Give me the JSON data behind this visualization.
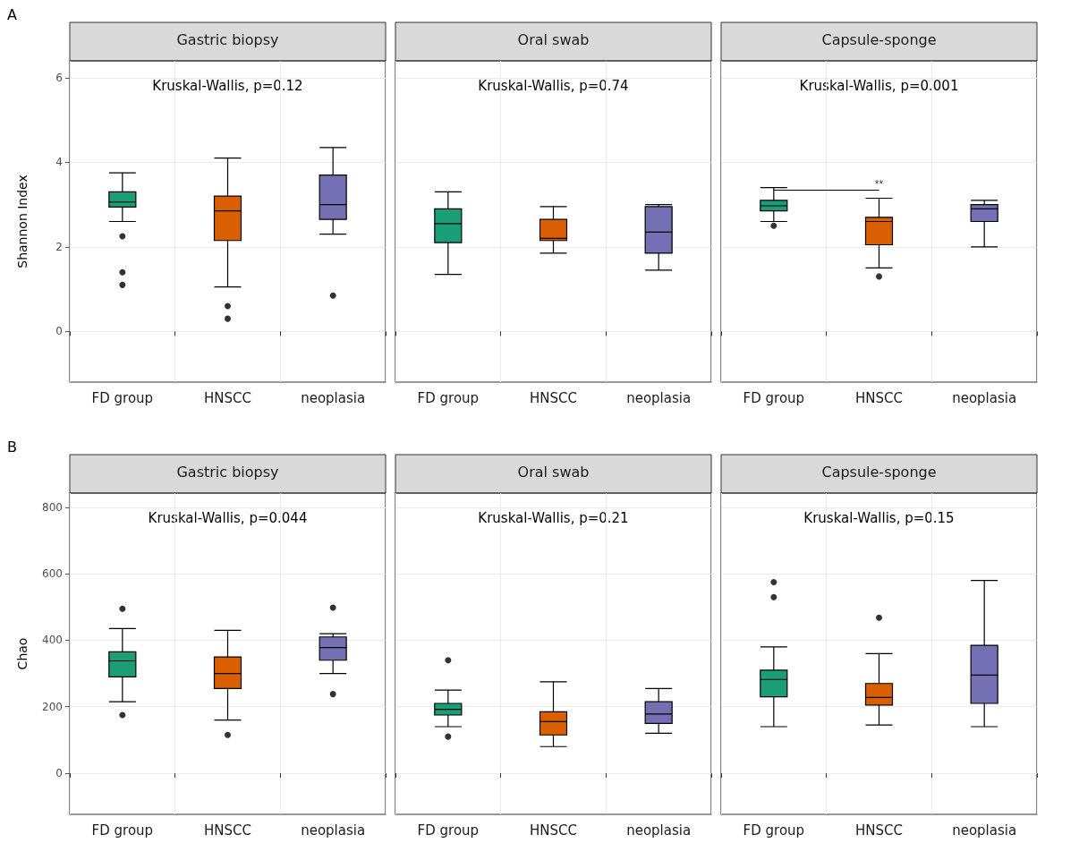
{
  "chart_data": [
    {
      "type": "box",
      "title": "Gastric biopsy",
      "ylabel": "Shannon Index",
      "annotations": [
        "Kruskal-Wallis, p=0.12",
        "A"
      ],
      "categories": [
        "FD group",
        "HNSCC",
        "neoplasia"
      ],
      "colors": [
        "#1b9e77",
        "#d95f02",
        "#7570b3"
      ],
      "ylim": [
        -1.2,
        6.4
      ],
      "yticks": [
        0,
        2,
        4,
        6
      ],
      "grid": true,
      "boxes": [
        {
          "low": 2.6,
          "q1": 2.94,
          "median": 3.06,
          "q3": 3.3,
          "high": 3.75,
          "outliers": [
            2.25,
            1.4,
            1.1
          ]
        },
        {
          "low": 1.05,
          "q1": 2.15,
          "median": 2.85,
          "q3": 3.2,
          "high": 4.1,
          "outliers": [
            0.6,
            0.3
          ]
        },
        {
          "low": 2.3,
          "q1": 2.65,
          "median": 3.0,
          "q3": 3.7,
          "high": 4.35,
          "outliers": [
            0.85
          ]
        }
      ]
    },
    {
      "type": "box",
      "title": "Oral swab",
      "annotations": [
        "Kruskal-Wallis, p=0.74"
      ],
      "categories": [
        "FD group",
        "HNSCC",
        "neoplasia"
      ],
      "colors": [
        "#1b9e77",
        "#d95f02",
        "#7570b3"
      ],
      "ylim": [
        -1.2,
        6.4
      ],
      "yticks": [
        0,
        2,
        4,
        6
      ],
      "grid": true,
      "tick_labels": "x",
      "boxes": [
        {
          "low": 1.35,
          "q1": 2.1,
          "median": 2.55,
          "q3": 2.9,
          "high": 3.3
        },
        {
          "low": 1.85,
          "q1": 2.15,
          "median": 2.2,
          "q3": 2.65,
          "high": 2.95
        },
        {
          "low": 1.45,
          "q1": 1.85,
          "median": 2.35,
          "q3": 2.95,
          "high": 3.0
        }
      ]
    },
    {
      "type": "box",
      "title": "Capsule-sponge",
      "annotations": [
        "Kruskal-Wallis, p=0.001",
        {
          "text": "**",
          "x": "FD group",
          "y": 3.35
        }
      ],
      "categories": [
        "FD group",
        "HNSCC",
        "neoplasia"
      ],
      "colors": [
        "#1b9e77",
        "#d95f02",
        "#7570b3"
      ],
      "ylim": [
        -1.2,
        6.4
      ],
      "yticks": [
        0,
        2,
        4,
        6
      ],
      "grid": true,
      "tick_labels": "x",
      "boxes": [
        {
          "low": 2.6,
          "q1": 2.85,
          "median": 2.97,
          "q3": 3.1,
          "high": 3.4,
          "outliers": [
            2.5
          ]
        },
        {
          "low": 1.5,
          "q1": 2.05,
          "median": 2.6,
          "q3": 2.7,
          "high": 3.15,
          "outliers": [
            1.3
          ]
        },
        {
          "low": 2.0,
          "q1": 2.6,
          "median": 2.9,
          "q3": 3.0,
          "high": 3.1
        }
      ]
    },
    {
      "type": "box",
      "title": "Gastric biopsy",
      "ylabel": "Chao",
      "annotations": [
        "Kruskal-Wallis, p=0.044",
        "B"
      ],
      "categories": [
        "FD group",
        "HNSCC",
        "neoplasia"
      ],
      "colors": [
        "#1b9e77",
        "#d95f02",
        "#7570b3"
      ],
      "ylim": [
        -124,
        843
      ],
      "yticks": [
        0,
        200,
        400,
        600,
        800
      ],
      "grid": true,
      "boxes": [
        {
          "low": 215,
          "q1": 290,
          "median": 338,
          "q3": 365,
          "high": 435,
          "outliers": [
            495,
            175
          ]
        },
        {
          "low": 160,
          "q1": 255,
          "median": 300,
          "q3": 350,
          "high": 430,
          "outliers": [
            115
          ]
        },
        {
          "low": 300,
          "q1": 340,
          "median": 378,
          "q3": 410,
          "high": 420,
          "outliers": [
            498,
            238
          ]
        }
      ]
    },
    {
      "type": "box",
      "title": "Oral swab",
      "annotations": [
        "Kruskal-Wallis, p=0.21"
      ],
      "categories": [
        "FD group",
        "HNSCC",
        "neoplasia"
      ],
      "colors": [
        "#1b9e77",
        "#d95f02",
        "#7570b3"
      ],
      "ylim": [
        -124,
        843
      ],
      "yticks": [
        0,
        200,
        400,
        600,
        800
      ],
      "grid": true,
      "tick_labels": "x",
      "boxes": [
        {
          "low": 140,
          "q1": 175,
          "median": 192,
          "q3": 210,
          "high": 250,
          "outliers": [
            340,
            110
          ]
        },
        {
          "low": 80,
          "q1": 115,
          "median": 155,
          "q3": 185,
          "high": 275
        },
        {
          "low": 120,
          "q1": 150,
          "median": 178,
          "q3": 215,
          "high": 255
        }
      ]
    },
    {
      "type": "box",
      "title": "Capsule-sponge",
      "annotations": [
        "Kruskal-Wallis, p=0.15"
      ],
      "categories": [
        "FD group",
        "HNSCC",
        "neoplasia"
      ],
      "colors": [
        "#1b9e77",
        "#d95f02",
        "#7570b3"
      ],
      "ylim": [
        -124,
        843
      ],
      "yticks": [
        0,
        200,
        400,
        600,
        800
      ],
      "grid": true,
      "tick_labels": "x",
      "boxes": [
        {
          "low": 140,
          "q1": 230,
          "median": 282,
          "q3": 310,
          "high": 380,
          "outliers": [
            575,
            530
          ]
        },
        {
          "low": 145,
          "q1": 205,
          "median": 228,
          "q3": 270,
          "high": 360,
          "outliers": [
            468
          ]
        },
        {
          "low": 140,
          "q1": 210,
          "median": 295,
          "q3": 385,
          "high": 580
        }
      ]
    }
  ]
}
